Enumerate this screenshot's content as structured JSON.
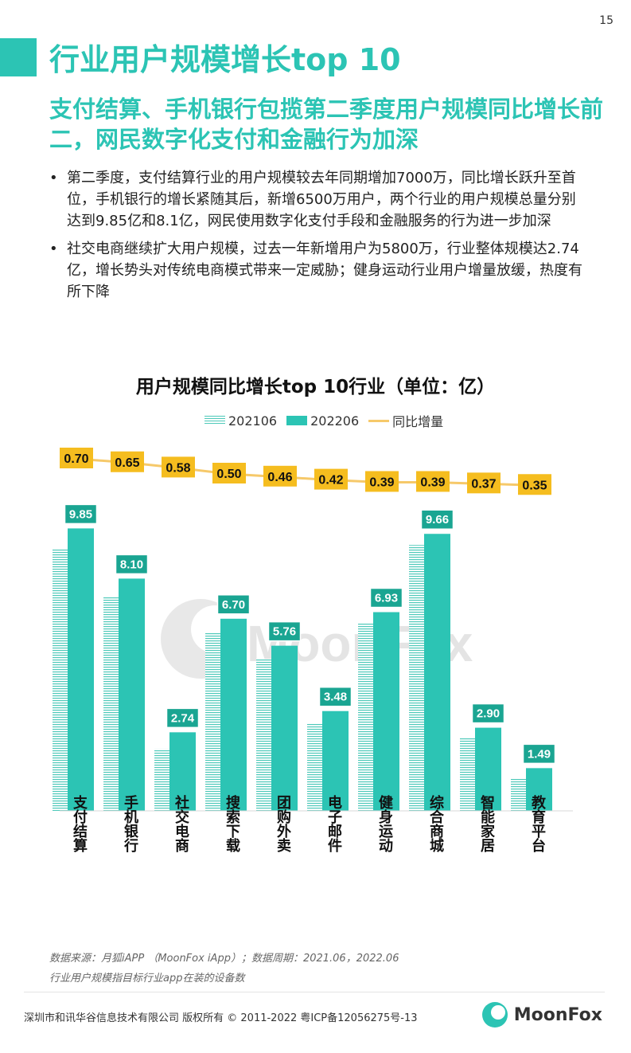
{
  "page_number": "15",
  "title": "行业用户规模增长top 10",
  "subtitle": "支付结算、手机银行包揽第二季度用户规模同比增长前二，网民数字化支付和金融行为加深",
  "bullets": [
    "第二季度，支付结算行业的用户规模较去年同期增加7000万，同比增长跃升至首位，手机银行的增长紧随其后，新增6500万用户，两个行业的用户规模总量分别达到9.85亿和8.1亿，网民使用数字化支付手段和金融服务的行为进一步加深",
    "社交电商继续扩大用户规模，过去一年新增用户为5800万，行业整体规模达2.74亿，增长势头对传统电商模式带来一定威胁；健身运动行业用户增量放缓，热度有所下降"
  ],
  "bullet_symbol": "•",
  "chart_data": {
    "type": "bar",
    "title": "用户规模同比增长top 10行业（单位：亿）",
    "categories": [
      "支付结算",
      "手机银行",
      "社交电商",
      "搜索下载",
      "团购外卖",
      "电子邮件",
      "健身运动",
      "综合商城",
      "智能家居",
      "教育平台"
    ],
    "series": [
      {
        "name": "202106",
        "type": "bar",
        "color": "#4dc9b9",
        "values": [
          9.15,
          7.45,
          2.16,
          6.2,
          5.3,
          3.06,
          6.54,
          9.27,
          2.53,
          1.14
        ]
      },
      {
        "name": "202206",
        "type": "bar",
        "color": "#2cc4b4",
        "values": [
          9.85,
          8.1,
          2.74,
          6.7,
          5.76,
          3.48,
          6.93,
          9.66,
          2.9,
          1.49
        ]
      },
      {
        "name": "同比增量",
        "type": "line",
        "color": "#f6c96a",
        "values": [
          0.7,
          0.65,
          0.58,
          0.5,
          0.46,
          0.42,
          0.39,
          0.39,
          0.37,
          0.35
        ]
      }
    ],
    "bar_labels": [
      "9.85",
      "8.10",
      "2.74",
      "6.70",
      "5.76",
      "3.48",
      "6.93",
      "9.66",
      "2.90",
      "1.49"
    ],
    "line_labels": [
      "0.70",
      "0.65",
      "0.58",
      "0.50",
      "0.46",
      "0.42",
      "0.39",
      "0.39",
      "0.37",
      "0.35"
    ],
    "legend_position": "top",
    "grid": false
  },
  "watermark": "MoonFox",
  "source_lines": [
    "数据来源：月狐iAPP （MoonFox iApp）；数据周期：2021.06，2022.06",
    "行业用户规模指目标行业app在装的设备数"
  ],
  "footer": "深圳市和讯华谷信息技术有限公司 版权所有 © 2011-2022 粤ICP备12056275号-13",
  "logo_text": "MoonFox",
  "colors": {
    "accent": "#2cc4b4",
    "label_bg": "#1aa592",
    "line_label_bg": "#f5bd1f",
    "line": "#f6c96a"
  }
}
